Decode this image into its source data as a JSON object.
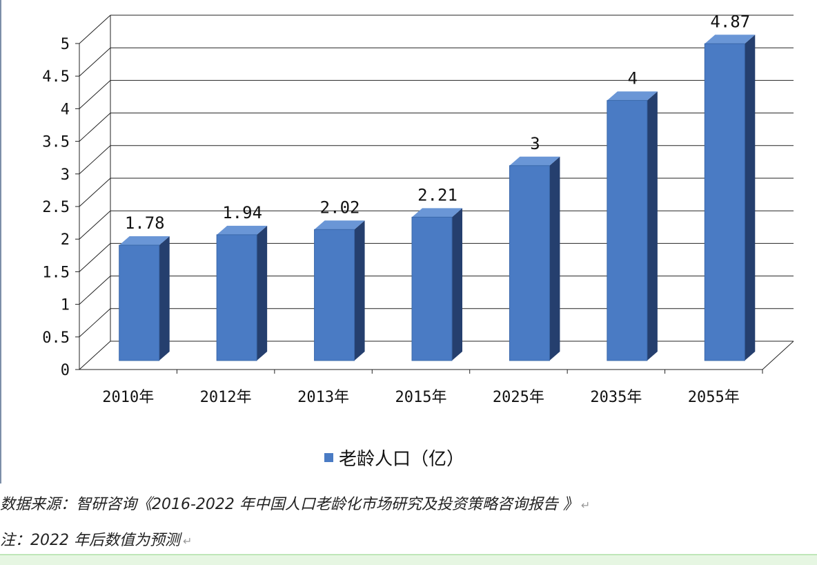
{
  "chart_data": {
    "type": "bar",
    "categories": [
      "2010年",
      "2012年",
      "2013年",
      "2015年",
      "2025年",
      "2035年",
      "2055年"
    ],
    "values": [
      1.78,
      1.94,
      2.02,
      2.21,
      3,
      4,
      4.87
    ],
    "data_labels": [
      "1.78",
      "1.94",
      "2.02",
      "2.21",
      "3",
      "4",
      "4.87"
    ],
    "y_ticks": [
      "0",
      "0.5",
      "1",
      "1.5",
      "2",
      "2.5",
      "3",
      "3.5",
      "4",
      "4.5",
      "5"
    ],
    "ylim": [
      0,
      5
    ],
    "series": [
      {
        "name": "老龄人口（亿）",
        "values": [
          1.78,
          1.94,
          2.02,
          2.21,
          3,
          4,
          4.87
        ]
      }
    ],
    "legend_position": "bottom",
    "grid": true,
    "colors": {
      "bar_front": "#4a7bc4",
      "bar_top": "#6a96d6",
      "bar_side": "#253f6e",
      "grid": "#222222"
    }
  },
  "legend": {
    "label": "老龄人口（亿）"
  },
  "source": {
    "text": "数据来源：智研咨询《2016-2022 年中国人口老龄化市场研究及投资策略咨询报告 》"
  },
  "note": {
    "text": "注：2022 年后数值为预测"
  },
  "marks": {
    "paragraph": "↵"
  }
}
